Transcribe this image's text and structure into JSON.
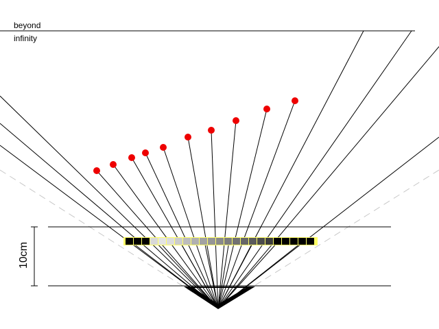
{
  "horizon_label_line1": "beyond",
  "horizon_label_line2": "infinity",
  "distance_label": "10cm",
  "colors": {
    "point": "#ee0000",
    "ray": "#000000",
    "dashed_guide": "#c8c8c8",
    "strip_highlight": "#ffff66"
  }
}
